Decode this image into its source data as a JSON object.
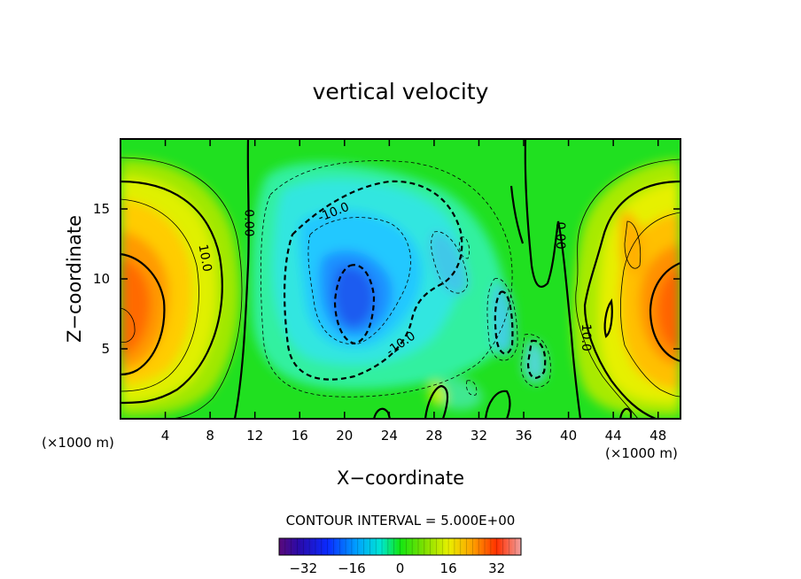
{
  "chart_data": {
    "type": "heatmap",
    "title": "vertical velocity",
    "xlabel": "X−coordinate",
    "ylabel": "Z−coordinate",
    "x_unit_left": "(×1000 m)",
    "x_unit_right": "(×1000 m)",
    "xlim": [
      0,
      50
    ],
    "ylim": [
      0,
      20
    ],
    "x_ticks": [
      4,
      8,
      12,
      16,
      20,
      24,
      28,
      32,
      36,
      40,
      44,
      48
    ],
    "x_tick_labels": [
      "4",
      "8",
      "12",
      "16",
      "20",
      "24",
      "28",
      "32",
      "36",
      "40",
      "44",
      "48"
    ],
    "y_ticks": [
      5,
      10,
      15
    ],
    "y_tick_labels": [
      "5",
      "10",
      "15"
    ],
    "contour_interval_text": "CONTOUR INTERVAL = 5.000E+00",
    "colorbar": {
      "range": [
        -40,
        40
      ],
      "ticks": [
        -32,
        -16,
        0,
        16,
        32
      ],
      "tick_labels": [
        "−32",
        "−16",
        "0",
        "16",
        "32"
      ]
    },
    "contour_labels": [
      {
        "text": "10.0",
        "x": 7.6,
        "z": 11.5,
        "rot": 80
      },
      {
        "text": "0.00",
        "x": 11.5,
        "z": 14.0,
        "rot": 90
      },
      {
        "text": "-10.0",
        "x": 19.0,
        "z": 14.8,
        "rot": -22
      },
      {
        "text": "-10.0",
        "x": 25.0,
        "z": 5.4,
        "rot": -35
      },
      {
        "text": "0.00",
        "x": 39.3,
        "z": 13.1,
        "rot": 90
      },
      {
        "text": "10.0",
        "x": 41.6,
        "z": 5.8,
        "rot": 90
      }
    ],
    "features": [
      {
        "name": "updraft-left",
        "x": 0.5,
        "z": 7.0,
        "peak": 30
      },
      {
        "name": "downdraft-center",
        "x": 21.5,
        "z": 8.5,
        "peak": -22
      },
      {
        "name": "updraft-right",
        "x": 49.5,
        "z": 7.5,
        "peak": 26
      }
    ]
  }
}
